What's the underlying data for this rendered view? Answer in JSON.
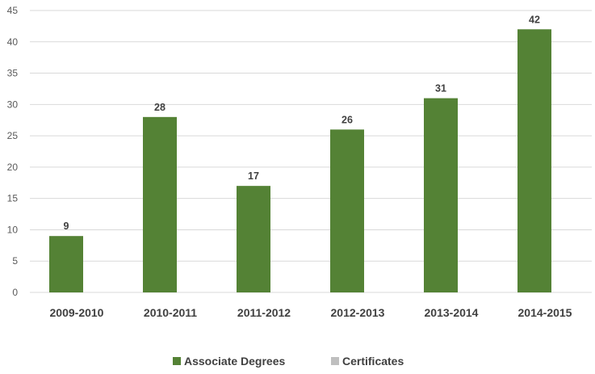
{
  "chart_data": {
    "type": "bar",
    "categories": [
      "2009-2010",
      "2010-2011",
      "2011-2012",
      "2012-2013",
      "2013-2014",
      "2014-2015"
    ],
    "series": [
      {
        "name": "Associate Degrees",
        "values": [
          9,
          28,
          17,
          26,
          31,
          42
        ],
        "color": "#548235"
      },
      {
        "name": "Certificates",
        "values": [
          0,
          0,
          0,
          0,
          0,
          0
        ],
        "color": "#bfbfbf"
      }
    ],
    "ylim": [
      0,
      45
    ],
    "yticks": [
      0,
      5,
      10,
      15,
      20,
      25,
      30,
      35,
      40,
      45
    ],
    "grid": true,
    "legend_position": "bottom",
    "data_labels": [
      "9",
      "28",
      "17",
      "26",
      "31",
      "42"
    ],
    "colors": {
      "gridline": "#d9d9d9"
    }
  }
}
